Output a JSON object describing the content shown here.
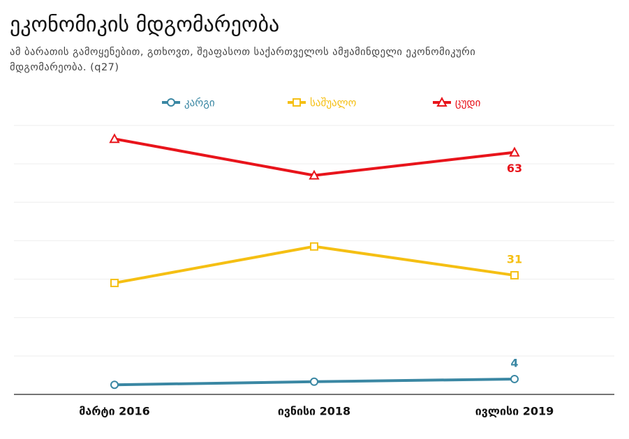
{
  "chart_data": {
    "type": "line",
    "title": "ეკონომიკის მდგომარეობა",
    "subtitle": "ამ ბარათის გამოყენებით, გთხოვთ, შეაფასოთ საქართველოს ამჟამინდელი ეკონომიკური მდგომარეობა. (q27)",
    "categories": [
      "მარტი 2016",
      "ივნისი 2018",
      "ივლისი 2019"
    ],
    "series": [
      {
        "name": "კარგი",
        "color": "#3a87a3",
        "marker": "circle",
        "values": [
          2.5,
          3.3,
          4
        ]
      },
      {
        "name": "საშუალო",
        "color": "#f5bf13",
        "marker": "square",
        "values": [
          29,
          38.5,
          31
        ]
      },
      {
        "name": "ცუდი",
        "color": "#e8141b",
        "marker": "triangle",
        "values": [
          66.5,
          57,
          63
        ]
      }
    ],
    "ylim": [
      0,
      70
    ],
    "yticks": [
      0,
      10,
      20,
      30,
      40,
      50,
      60,
      70
    ],
    "grid": true
  }
}
